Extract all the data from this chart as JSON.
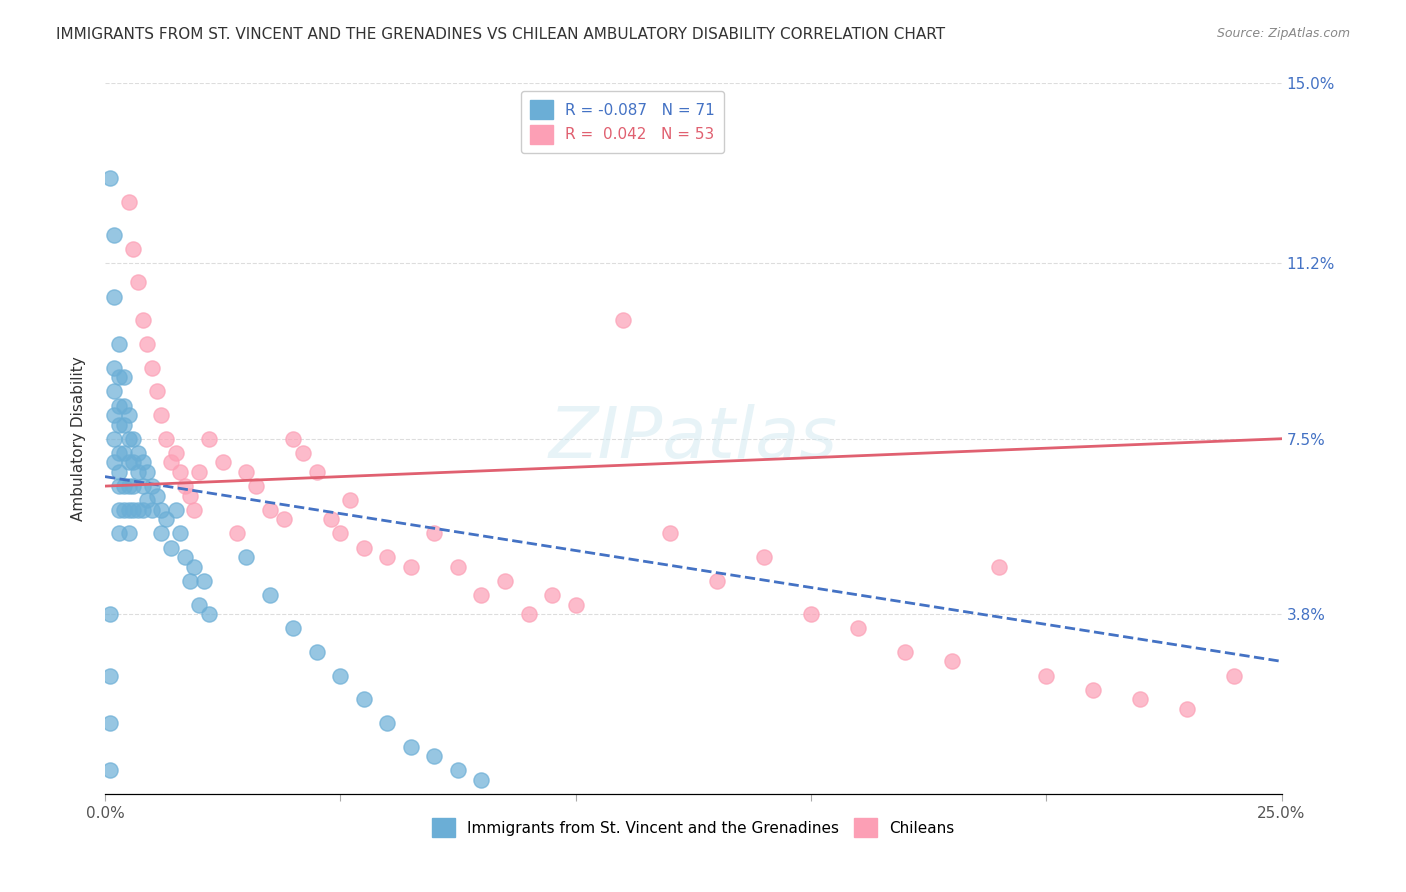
{
  "title": "IMMIGRANTS FROM ST. VINCENT AND THE GRENADINES VS CHILEAN AMBULATORY DISABILITY CORRELATION CHART",
  "source": "Source: ZipAtlas.com",
  "xlabel": "",
  "ylabel": "Ambulatory Disability",
  "xlim": [
    0,
    0.25
  ],
  "ylim": [
    0,
    0.15
  ],
  "yticks": [
    0,
    0.038,
    0.075,
    0.112,
    0.15
  ],
  "ytick_labels": [
    "",
    "3.8%",
    "7.5%",
    "11.2%",
    "15.0%"
  ],
  "xticks": [
    0,
    0.05,
    0.1,
    0.15,
    0.2,
    0.25
  ],
  "xtick_labels": [
    "0.0%",
    "",
    "",
    "",
    "",
    "25.0%"
  ],
  "legend1_label": "R = -0.087   N = 71",
  "legend2_label": "R =  0.042   N = 53",
  "legend_label1": "Immigrants from St. Vincent and the Grenadines",
  "legend_label2": "Chileans",
  "blue_color": "#6baed6",
  "pink_color": "#fc9fb5",
  "blue_line_color": "#4472C4",
  "pink_line_color": "#e06070",
  "background_color": "#ffffff",
  "grid_color": "#dddddd",
  "watermark": "ZIPatlas",
  "blue_R": -0.087,
  "blue_N": 71,
  "pink_R": 0.042,
  "pink_N": 53,
  "blue_x": [
    0.001,
    0.001,
    0.001,
    0.001,
    0.001,
    0.002,
    0.002,
    0.002,
    0.002,
    0.002,
    0.002,
    0.002,
    0.003,
    0.003,
    0.003,
    0.003,
    0.003,
    0.003,
    0.003,
    0.003,
    0.003,
    0.004,
    0.004,
    0.004,
    0.004,
    0.004,
    0.004,
    0.005,
    0.005,
    0.005,
    0.005,
    0.005,
    0.005,
    0.006,
    0.006,
    0.006,
    0.006,
    0.007,
    0.007,
    0.007,
    0.008,
    0.008,
    0.008,
    0.009,
    0.009,
    0.01,
    0.01,
    0.011,
    0.012,
    0.012,
    0.013,
    0.014,
    0.015,
    0.016,
    0.017,
    0.018,
    0.019,
    0.02,
    0.021,
    0.022,
    0.03,
    0.035,
    0.04,
    0.045,
    0.05,
    0.055,
    0.06,
    0.065,
    0.07,
    0.075,
    0.08
  ],
  "blue_y": [
    0.13,
    0.038,
    0.025,
    0.015,
    0.005,
    0.118,
    0.105,
    0.09,
    0.085,
    0.08,
    0.075,
    0.07,
    0.095,
    0.088,
    0.082,
    0.078,
    0.072,
    0.068,
    0.065,
    0.06,
    0.055,
    0.088,
    0.082,
    0.078,
    0.072,
    0.065,
    0.06,
    0.08,
    0.075,
    0.07,
    0.065,
    0.06,
    0.055,
    0.075,
    0.07,
    0.065,
    0.06,
    0.072,
    0.068,
    0.06,
    0.07,
    0.065,
    0.06,
    0.068,
    0.062,
    0.065,
    0.06,
    0.063,
    0.06,
    0.055,
    0.058,
    0.052,
    0.06,
    0.055,
    0.05,
    0.045,
    0.048,
    0.04,
    0.045,
    0.038,
    0.05,
    0.042,
    0.035,
    0.03,
    0.025,
    0.02,
    0.015,
    0.01,
    0.008,
    0.005,
    0.003
  ],
  "pink_x": [
    0.005,
    0.006,
    0.007,
    0.008,
    0.009,
    0.01,
    0.011,
    0.012,
    0.013,
    0.014,
    0.015,
    0.016,
    0.017,
    0.018,
    0.019,
    0.02,
    0.022,
    0.025,
    0.028,
    0.03,
    0.032,
    0.035,
    0.038,
    0.04,
    0.042,
    0.045,
    0.048,
    0.05,
    0.052,
    0.055,
    0.06,
    0.065,
    0.07,
    0.075,
    0.08,
    0.085,
    0.09,
    0.095,
    0.1,
    0.11,
    0.12,
    0.13,
    0.14,
    0.15,
    0.16,
    0.17,
    0.18,
    0.19,
    0.2,
    0.21,
    0.22,
    0.23,
    0.24
  ],
  "pink_y": [
    0.125,
    0.115,
    0.108,
    0.1,
    0.095,
    0.09,
    0.085,
    0.08,
    0.075,
    0.07,
    0.072,
    0.068,
    0.065,
    0.063,
    0.06,
    0.068,
    0.075,
    0.07,
    0.055,
    0.068,
    0.065,
    0.06,
    0.058,
    0.075,
    0.072,
    0.068,
    0.058,
    0.055,
    0.062,
    0.052,
    0.05,
    0.048,
    0.055,
    0.048,
    0.042,
    0.045,
    0.038,
    0.042,
    0.04,
    0.1,
    0.055,
    0.045,
    0.05,
    0.038,
    0.035,
    0.03,
    0.028,
    0.048,
    0.025,
    0.022,
    0.02,
    0.018,
    0.025
  ]
}
